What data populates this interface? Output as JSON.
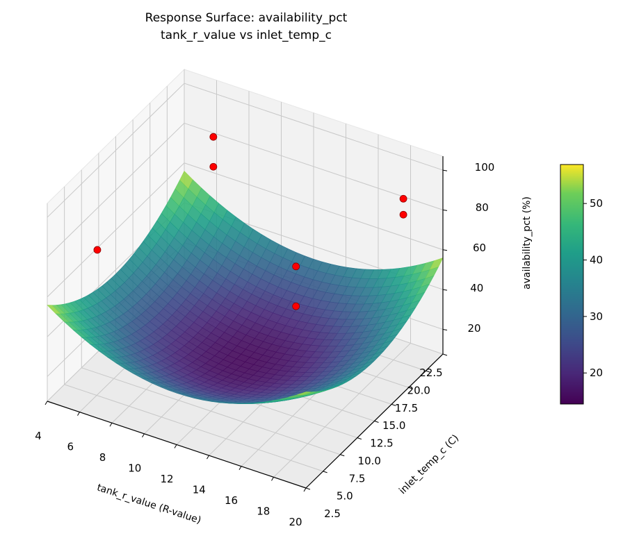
{
  "chart_data": {
    "type": "surface3d",
    "title": "Response Surface: availability_pct",
    "subtitle": "tank_r_value vs inlet_temp_c",
    "xlabel": "tank_r_value (R-value)",
    "ylabel": "inlet_temp_c (C)",
    "zlabel": "availability_pct (%)",
    "xlim": [
      4,
      20
    ],
    "ylim": [
      2.5,
      22.5
    ],
    "zlim": [
      7.6,
      107
    ],
    "xticks": [
      "4",
      "6",
      "8",
      "10",
      "12",
      "14",
      "16",
      "18",
      "20"
    ],
    "yticks": [
      "2.5",
      "5.0",
      "7.5",
      "10.0",
      "12.5",
      "15.0",
      "17.5",
      "20.0",
      "22.5"
    ],
    "zticks": [
      "20",
      "40",
      "60",
      "80",
      "100"
    ],
    "surface": {
      "model": "z = 15.5 + 0.35*(x-12)^2 + 0.18*(y-12.5)^2",
      "colormap": "viridis",
      "alpha": 0.9
    },
    "colorbar": {
      "range": [
        14.5,
        56.9
      ],
      "ticks": [
        "20",
        "30",
        "40",
        "50"
      ]
    },
    "points": {
      "color": "#ff0000",
      "edge_color": "#8b0000",
      "x": [
        5.8,
        5.8,
        5.4,
        14.3,
        14.3,
        18.4,
        18.4
      ],
      "y": [
        22.5,
        22.5,
        6.5,
        14.5,
        14.5,
        20.5,
        20.5
      ],
      "z": [
        78,
        63,
        74,
        63,
        43,
        88,
        80
      ]
    },
    "grid": true,
    "pane_color": "#f2f2f2"
  }
}
